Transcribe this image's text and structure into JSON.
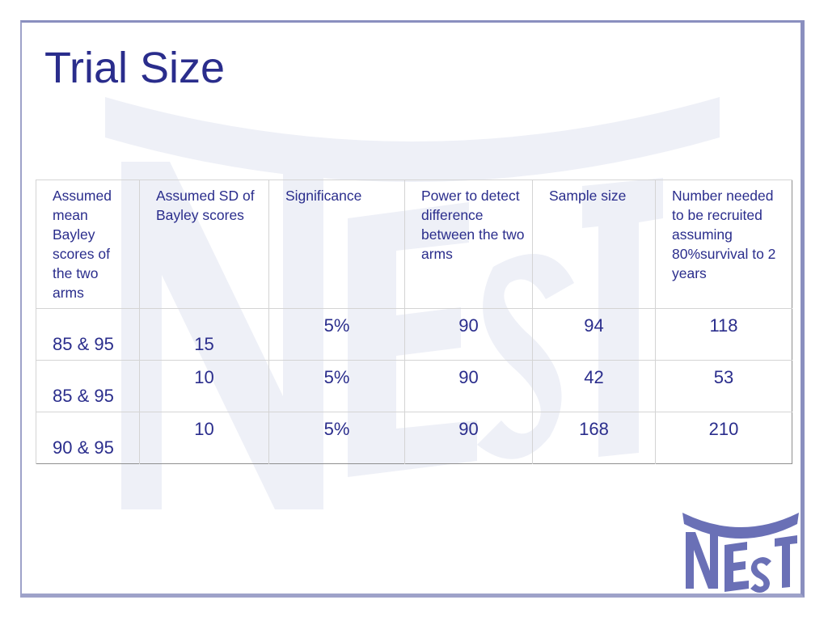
{
  "slide": {
    "title": "Trial Size",
    "logo_text": "NEST",
    "watermark_text": "NEST"
  },
  "table": {
    "headers": [
      "Assumed mean Bayley scores of the two arms",
      "Assumed SD of Bayley scores",
      "Significance",
      "Power to detect difference between the two arms",
      "Sample size",
      "Number needed to be recruited assuming 80%survival to 2 years"
    ],
    "rows": [
      {
        "mean": "85 & 95",
        "sd": "15",
        "significance": "5%",
        "power": "90",
        "sample_size": "94",
        "recruited": "118"
      },
      {
        "mean": "85 & 95",
        "sd": "10",
        "significance": "5%",
        "power": "90",
        "sample_size": "42",
        "recruited": "53"
      },
      {
        "mean": "90 & 95",
        "sd": "10",
        "significance": "5%",
        "power": "90",
        "sample_size": "168",
        "recruited": "210"
      }
    ]
  },
  "colors": {
    "title": "#2a2d8c",
    "text": "#2a2d8c",
    "frame": "#8a8fbf",
    "logo": "#6a70b6",
    "watermark": "#edeef6"
  }
}
